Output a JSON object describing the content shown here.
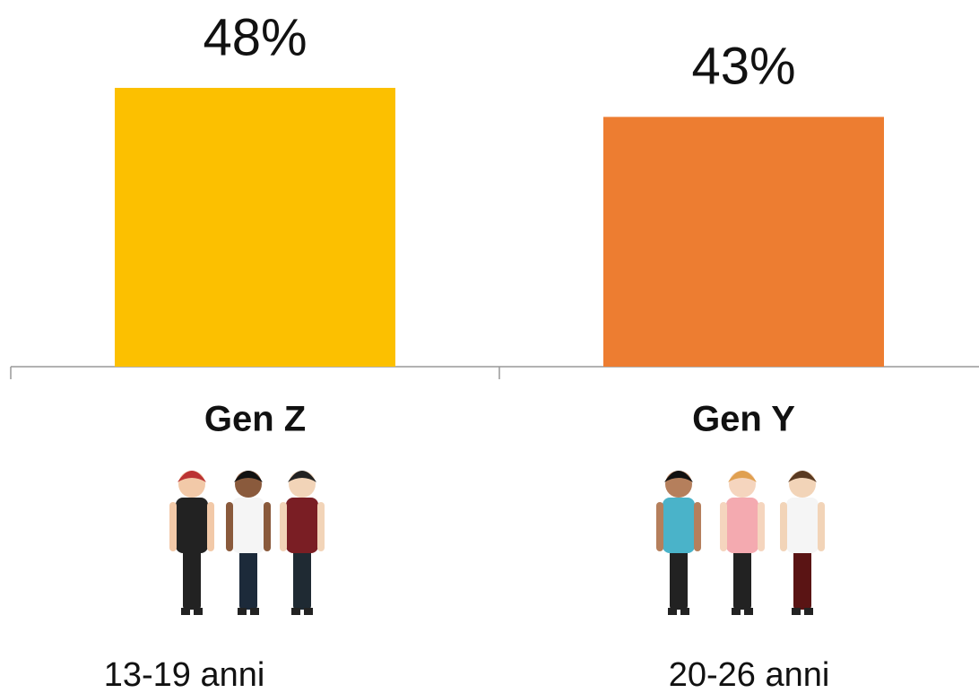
{
  "chart_data": {
    "type": "bar",
    "categories": [
      "Gen Z",
      "Gen Y"
    ],
    "values": [
      48,
      43
    ],
    "value_labels": [
      "48%",
      "43%"
    ],
    "colors": [
      "#fcc000",
      "#ed7d31"
    ],
    "age_ranges": [
      "13-19 anni",
      "20-26 anni"
    ]
  }
}
